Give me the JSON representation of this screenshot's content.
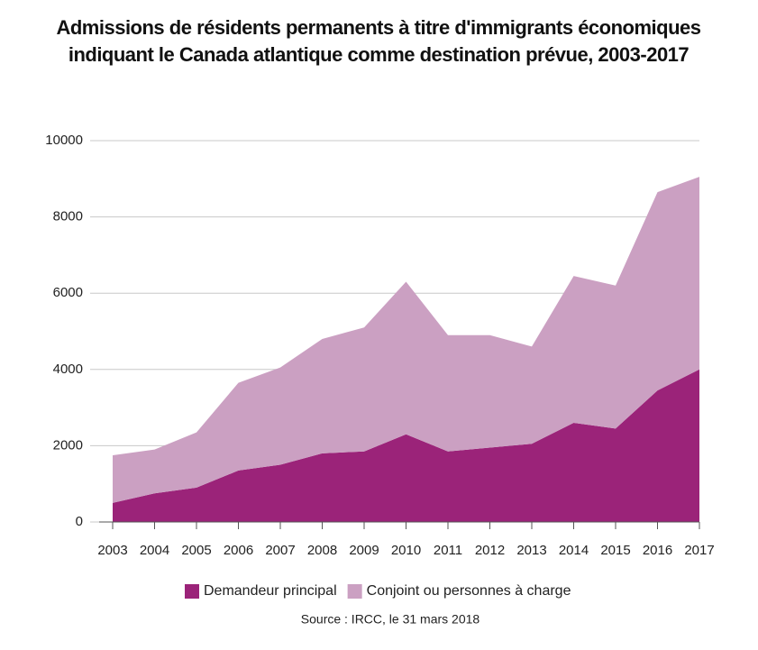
{
  "chart_data": {
    "type": "stacked-area",
    "title": "Admissions de résidents permanents à titre d'immigrants économiques indiquant le Canada atlantique comme destination prévue, 2003-2017",
    "categories": [
      "2003",
      "2004",
      "2005",
      "2006",
      "2007",
      "2008",
      "2009",
      "2010",
      "2011",
      "2012",
      "2013",
      "2014",
      "2015",
      "2016",
      "2017"
    ],
    "series": [
      {
        "name": "Demandeur principal",
        "color": "#9b2379",
        "values": [
          500,
          750,
          900,
          1350,
          1500,
          1800,
          1850,
          2300,
          1850,
          1950,
          2050,
          2600,
          2450,
          3450,
          4000
        ]
      },
      {
        "name": "Conjoint ou personnes à charge",
        "color": "#cba0c2",
        "values": [
          1250,
          1150,
          1450,
          2300,
          2550,
          3000,
          3250,
          4000,
          3050,
          2950,
          2550,
          3850,
          3750,
          5200,
          5050
        ]
      }
    ],
    "ylim": [
      0,
      10000
    ],
    "yticks": [
      0,
      2000,
      4000,
      6000,
      8000,
      10000
    ],
    "grid": true,
    "source": "Source : IRCC, le 31 mars 2018"
  }
}
